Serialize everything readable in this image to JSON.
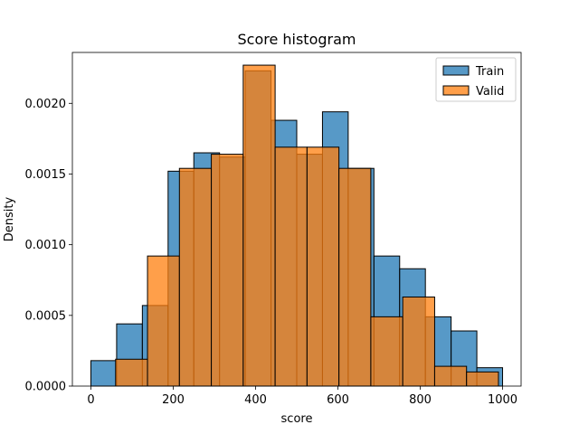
{
  "chart_data": {
    "type": "bar",
    "title": "Score histogram",
    "xlabel": "score",
    "ylabel": "Density",
    "xlim": [
      -45,
      1045
    ],
    "ylim": [
      0,
      0.00236
    ],
    "xticks": [
      0,
      200,
      400,
      600,
      800,
      1000
    ],
    "xtick_labels": [
      "0",
      "200",
      "400",
      "600",
      "800",
      "1000"
    ],
    "yticks": [
      0,
      0.0005,
      0.001,
      0.0015,
      0.002
    ],
    "ytick_labels": [
      "0.0000",
      "0.0005",
      "0.0010",
      "0.0015",
      "0.0020"
    ],
    "grid": false,
    "legend_position": "top-right",
    "series": [
      {
        "name": "Train",
        "color": "#1f77b4",
        "bin_edges": [
          0,
          62.5,
          125,
          187.5,
          250,
          312.5,
          375,
          437.5,
          500,
          562.5,
          625,
          687.5,
          750,
          812.5,
          875,
          937.5,
          1000
        ],
        "values": [
          0.00018,
          0.00044,
          0.00057,
          0.00152,
          0.00165,
          0.00162,
          0.00223,
          0.00188,
          0.00164,
          0.00194,
          0.00154,
          0.00092,
          0.00083,
          0.00049,
          0.00039,
          0.00013
        ]
      },
      {
        "name": "Valid",
        "color": "#ff7f0e",
        "bin_edges": [
          60,
          137.5,
          215,
          292.5,
          370,
          447.5,
          525,
          602.5,
          680,
          757.5,
          835,
          912.5,
          990
        ],
        "values": [
          0.00019,
          0.00092,
          0.00154,
          0.00164,
          0.00227,
          0.00169,
          0.00169,
          0.00154,
          0.00049,
          0.00063,
          0.00014,
          0.0001
        ]
      }
    ]
  }
}
